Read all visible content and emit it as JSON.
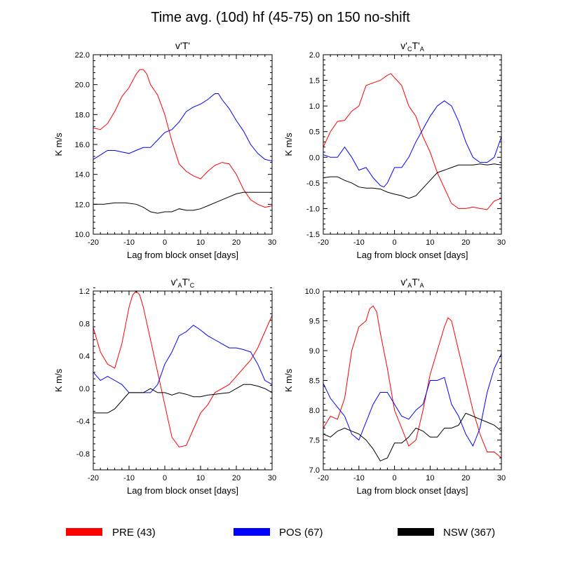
{
  "figure": {
    "title": "Time avg. (10d) hf (45-75) on 150 no-shift"
  },
  "colors": {
    "PRE": "#ff0000",
    "POS": "#0000ff",
    "NSW": "#000000"
  },
  "legend": {
    "placement": "bottom",
    "entries": [
      {
        "key": "PRE",
        "label": "PRE (43)"
      },
      {
        "key": "POS",
        "label": "POS (67)"
      },
      {
        "key": "NSW",
        "label": "NSW (367)"
      }
    ]
  },
  "chart_data": [
    {
      "id": "p1",
      "type": "line",
      "title_parts": [
        [
          "v'T'",
          "n"
        ]
      ],
      "xlabel": "Lag from block onset [days]",
      "ylabel": "K m/s",
      "xlim": [
        -20,
        30
      ],
      "ylim": [
        10.0,
        22.0
      ],
      "xticks": [
        "-20",
        "-10",
        "0",
        "10",
        "20",
        "30"
      ],
      "yticks": [
        "10.0",
        "12.0",
        "14.0",
        "16.0",
        "18.0",
        "20.0",
        "22.0"
      ],
      "grid": false,
      "series": [
        {
          "key": "PRE",
          "x": [
            -20,
            -18,
            -16,
            -14,
            -12,
            -10,
            -8,
            -7,
            -6,
            -5,
            -4,
            -2,
            0,
            2,
            4,
            6,
            8,
            10,
            12,
            14,
            16,
            18,
            20,
            22,
            24,
            26,
            28,
            30
          ],
          "y": [
            17.1,
            17.0,
            17.4,
            18.2,
            19.2,
            19.8,
            20.7,
            21.0,
            21.0,
            20.7,
            20.0,
            19.3,
            18.0,
            16.2,
            14.7,
            14.2,
            13.9,
            13.7,
            14.2,
            14.6,
            14.8,
            14.7,
            14.0,
            13.0,
            12.3,
            12.0,
            11.8,
            11.9
          ]
        },
        {
          "key": "POS",
          "x": [
            -20,
            -18,
            -16,
            -14,
            -12,
            -10,
            -8,
            -6,
            -4,
            -2,
            0,
            2,
            4,
            6,
            8,
            10,
            12,
            14,
            15,
            16,
            18,
            20,
            22,
            24,
            26,
            28,
            30
          ],
          "y": [
            15.0,
            15.3,
            15.6,
            15.6,
            15.5,
            15.4,
            15.6,
            15.8,
            15.8,
            16.3,
            16.8,
            17.0,
            17.5,
            18.2,
            18.5,
            18.7,
            19.0,
            19.4,
            19.4,
            19.0,
            18.4,
            17.6,
            16.9,
            16.0,
            15.4,
            15.0,
            14.9
          ]
        },
        {
          "key": "NSW",
          "x": [
            -20,
            -17,
            -14,
            -11,
            -8,
            -6,
            -4,
            -2,
            0,
            2,
            4,
            6,
            8,
            10,
            12,
            14,
            16,
            18,
            20,
            22,
            24,
            26,
            28,
            30
          ],
          "y": [
            12.0,
            12.0,
            12.1,
            12.1,
            12.0,
            11.8,
            11.5,
            11.4,
            11.5,
            11.5,
            11.7,
            11.6,
            11.6,
            11.7,
            11.9,
            12.1,
            12.3,
            12.5,
            12.7,
            12.8,
            12.8,
            12.8,
            12.8,
            12.8
          ]
        }
      ]
    },
    {
      "id": "p2",
      "type": "line",
      "title_parts": [
        [
          "v'",
          "n"
        ],
        [
          "C",
          "sub"
        ],
        [
          "T'",
          "n"
        ],
        [
          "A",
          "sub"
        ]
      ],
      "xlabel": "Lag from block onset [days]",
      "ylabel": "K m/s",
      "xlim": [
        -20,
        30
      ],
      "ylim": [
        -1.5,
        2.0
      ],
      "xticks": [
        "-20",
        "-10",
        "0",
        "10",
        "20",
        "30"
      ],
      "yticks": [
        "-1.5",
        "-1.0",
        "-0.5",
        "0.0",
        "0.5",
        "1.0",
        "1.5",
        "2.0"
      ],
      "grid": false,
      "series": [
        {
          "key": "PRE",
          "x": [
            -20,
            -18,
            -16,
            -14,
            -12,
            -10,
            -8,
            -6,
            -4,
            -2,
            -1,
            0,
            2,
            4,
            6,
            8,
            10,
            12,
            14,
            16,
            18,
            20,
            22,
            24,
            26,
            28,
            30
          ],
          "y": [
            0.2,
            0.5,
            0.7,
            0.72,
            0.9,
            1.0,
            1.4,
            1.45,
            1.5,
            1.6,
            1.63,
            1.55,
            1.4,
            1.0,
            0.8,
            0.4,
            0.1,
            -0.3,
            -0.6,
            -0.9,
            -1.0,
            -1.0,
            -0.97,
            -1.0,
            -1.02,
            -0.85,
            -0.8
          ]
        },
        {
          "key": "POS",
          "x": [
            -20,
            -18,
            -16,
            -14,
            -12,
            -10,
            -8,
            -6,
            -4,
            -3,
            -2,
            0,
            2,
            4,
            6,
            8,
            10,
            12,
            14,
            16,
            18,
            20,
            22,
            24,
            26,
            28,
            30
          ],
          "y": [
            0.05,
            0.0,
            0.0,
            0.2,
            0.0,
            -0.25,
            -0.2,
            -0.4,
            -0.55,
            -0.58,
            -0.5,
            -0.2,
            -0.2,
            0.0,
            0.3,
            0.55,
            0.8,
            1.0,
            1.1,
            1.0,
            0.7,
            0.3,
            0.0,
            -0.1,
            -0.1,
            0.0,
            0.4
          ]
        },
        {
          "key": "NSW",
          "x": [
            -20,
            -18,
            -16,
            -14,
            -12,
            -10,
            -8,
            -6,
            -4,
            -2,
            0,
            2,
            4,
            6,
            8,
            10,
            12,
            14,
            16,
            18,
            20,
            22,
            24,
            26,
            28,
            30
          ],
          "y": [
            -0.4,
            -0.38,
            -0.38,
            -0.45,
            -0.5,
            -0.58,
            -0.6,
            -0.6,
            -0.62,
            -0.68,
            -0.72,
            -0.75,
            -0.8,
            -0.75,
            -0.6,
            -0.45,
            -0.3,
            -0.25,
            -0.2,
            -0.15,
            -0.15,
            -0.15,
            -0.13,
            -0.15,
            -0.13,
            -0.15
          ]
        }
      ]
    },
    {
      "id": "p3",
      "type": "line",
      "title_parts": [
        [
          "v'",
          "n"
        ],
        [
          "A",
          "sub"
        ],
        [
          "T'",
          "n"
        ],
        [
          "C",
          "sub"
        ]
      ],
      "xlabel": "Lag from block onset [days]",
      "ylabel": "K m/s",
      "xlim": [
        -20,
        30
      ],
      "ylim": [
        -1.0,
        1.2
      ],
      "xticks": [
        "-20",
        "-10",
        "0",
        "10",
        "20",
        "30"
      ],
      "yticks": [
        "-0.8",
        "-0.4",
        "0.0",
        "0.4",
        "0.8",
        "1.2"
      ],
      "grid": false,
      "series": [
        {
          "key": "PRE",
          "x": [
            -20,
            -18,
            -16,
            -14,
            -12,
            -10,
            -9,
            -8,
            -7,
            -6,
            -4,
            -2,
            0,
            2,
            4,
            6,
            8,
            10,
            12,
            14,
            16,
            18,
            20,
            22,
            24,
            26,
            28,
            30
          ],
          "y": [
            0.75,
            0.45,
            0.3,
            0.25,
            0.55,
            1.0,
            1.15,
            1.2,
            1.15,
            1.0,
            0.6,
            0.2,
            -0.2,
            -0.6,
            -0.72,
            -0.7,
            -0.5,
            -0.3,
            -0.2,
            -0.05,
            0.0,
            0.05,
            0.15,
            0.25,
            0.35,
            0.5,
            0.7,
            0.9
          ]
        },
        {
          "key": "POS",
          "x": [
            -20,
            -18,
            -16,
            -14,
            -12,
            -10,
            -8,
            -6,
            -4,
            -2,
            0,
            2,
            4,
            6,
            8,
            10,
            12,
            14,
            16,
            18,
            20,
            22,
            24,
            26,
            28,
            30
          ],
          "y": [
            0.2,
            0.1,
            0.15,
            0.1,
            0.05,
            -0.05,
            -0.05,
            -0.05,
            -0.05,
            0.05,
            0.3,
            0.45,
            0.65,
            0.7,
            0.78,
            0.72,
            0.65,
            0.6,
            0.55,
            0.5,
            0.5,
            0.48,
            0.45,
            0.3,
            0.1,
            0.05
          ]
        },
        {
          "key": "NSW",
          "x": [
            -20,
            -18,
            -16,
            -14,
            -12,
            -10,
            -8,
            -6,
            -4,
            -2,
            0,
            2,
            4,
            6,
            8,
            10,
            12,
            14,
            16,
            18,
            20,
            22,
            24,
            26,
            28,
            30
          ],
          "y": [
            -0.3,
            -0.3,
            -0.3,
            -0.25,
            -0.15,
            -0.05,
            -0.05,
            -0.05,
            0.0,
            -0.05,
            -0.05,
            -0.08,
            -0.05,
            -0.07,
            -0.1,
            -0.1,
            -0.08,
            -0.07,
            -0.06,
            -0.05,
            0.0,
            0.05,
            0.05,
            0.03,
            0.0,
            -0.05
          ]
        }
      ]
    },
    {
      "id": "p4",
      "type": "line",
      "title_parts": [
        [
          "v'",
          "n"
        ],
        [
          "A",
          "sub"
        ],
        [
          "T'",
          "n"
        ],
        [
          "A",
          "sub"
        ]
      ],
      "xlabel": "Lag from block onset [days]",
      "ylabel": "K m/s",
      "xlim": [
        -20,
        30
      ],
      "ylim": [
        7.0,
        10.0
      ],
      "xticks": [
        "-20",
        "-10",
        "0",
        "10",
        "20",
        "30"
      ],
      "yticks": [
        "7.0",
        "7.5",
        "8.0",
        "8.5",
        "9.0",
        "9.5",
        "10.0"
      ],
      "grid": false,
      "series": [
        {
          "key": "PRE",
          "x": [
            -20,
            -18,
            -16,
            -14,
            -12,
            -10,
            -8,
            -7,
            -6,
            -5,
            -4,
            -2,
            0,
            2,
            4,
            6,
            8,
            10,
            12,
            14,
            15,
            16,
            18,
            20,
            22,
            24,
            26,
            28,
            30
          ],
          "y": [
            7.7,
            7.9,
            7.85,
            8.2,
            9.0,
            9.4,
            9.5,
            9.7,
            9.75,
            9.65,
            9.3,
            8.7,
            8.0,
            7.7,
            7.4,
            7.5,
            8.0,
            8.6,
            9.0,
            9.4,
            9.55,
            9.5,
            9.0,
            8.5,
            8.0,
            7.6,
            7.3,
            7.3,
            7.2
          ]
        },
        {
          "key": "POS",
          "x": [
            -20,
            -18,
            -16,
            -14,
            -12,
            -10,
            -8,
            -6,
            -4,
            -2,
            0,
            2,
            4,
            6,
            8,
            10,
            12,
            14,
            16,
            18,
            20,
            22,
            24,
            26,
            28,
            30
          ],
          "y": [
            8.45,
            8.2,
            8.05,
            7.9,
            7.6,
            7.5,
            7.8,
            8.1,
            8.3,
            8.3,
            8.1,
            7.9,
            7.85,
            8.0,
            8.1,
            8.5,
            8.5,
            8.55,
            8.1,
            7.9,
            7.6,
            7.4,
            7.7,
            8.3,
            8.7,
            8.95
          ]
        },
        {
          "key": "NSW",
          "x": [
            -20,
            -18,
            -16,
            -14,
            -12,
            -10,
            -8,
            -6,
            -4,
            -2,
            0,
            2,
            4,
            6,
            8,
            10,
            12,
            14,
            16,
            18,
            20,
            22,
            24,
            26,
            28,
            30
          ],
          "y": [
            7.6,
            7.55,
            7.65,
            7.7,
            7.65,
            7.6,
            7.5,
            7.35,
            7.15,
            7.2,
            7.45,
            7.45,
            7.55,
            7.7,
            7.65,
            7.55,
            7.55,
            7.7,
            7.7,
            7.75,
            7.95,
            7.9,
            7.85,
            7.8,
            7.75,
            7.65
          ]
        }
      ]
    }
  ]
}
